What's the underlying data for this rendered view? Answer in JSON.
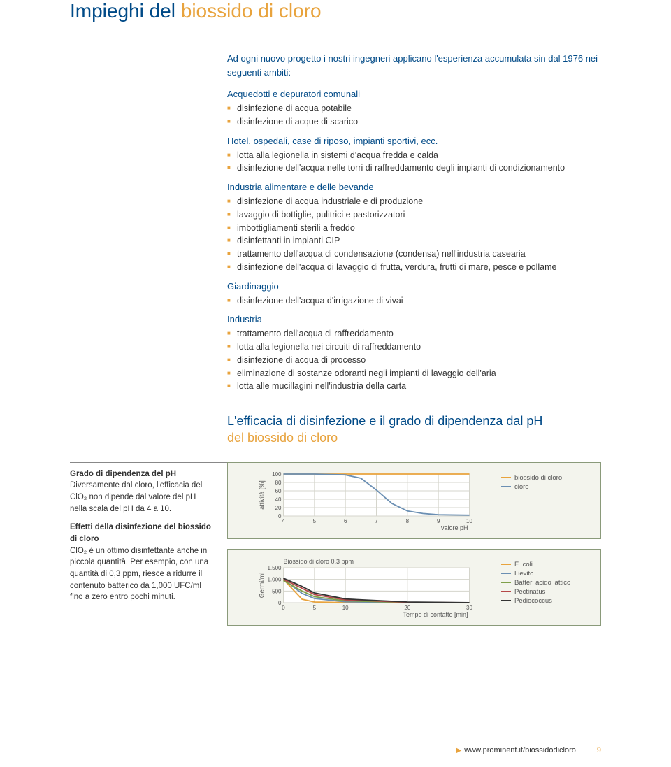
{
  "title_a": "Impieghi del ",
  "title_b": "biossido di cloro",
  "intro": "Ad ogni nuovo progetto i nostri ingegneri applicano l'esperienza accumulata sin dal 1976 nei seguenti ambiti:",
  "sections": [
    {
      "head": "Acquedotti e depuratori comunali",
      "items": [
        "disinfezione di acqua potabile",
        "disinfezione di acque di scarico"
      ]
    },
    {
      "head": "Hotel, ospedali, case di riposo, impianti sportivi, ecc.",
      "items": [
        "lotta alla legionella in sistemi d'acqua fredda e calda",
        "disinfezione dell'acqua nelle torri di raffreddamento degli impianti di condizionamento"
      ]
    },
    {
      "head": "Industria alimentare e delle bevande",
      "items": [
        "disinfezione di acqua industriale e di produzione",
        "lavaggio di bottiglie, pulitrici e pastorizzatori",
        "imbottigliamenti sterili a freddo",
        "disinfettanti in impianti CIP",
        "trattamento dell'acqua di condensazione (condensa) nell'industria casearia",
        "disinfezione dell'acqua di lavaggio di frutta, verdura, frutti di mare, pesce e pollame"
      ]
    },
    {
      "head": "Giardinaggio",
      "items": [
        "disinfezione dell'acqua d'irrigazione di vivai"
      ]
    },
    {
      "head": "Industria",
      "items": [
        "trattamento dell'acqua di raffreddamento",
        "lotta alla legionella nei circuiti di raffreddamento",
        "disinfezione di acqua di processo",
        "eliminazione di sostanze odoranti negli impianti di lavaggio dell'aria",
        "lotta alle mucillagini nell'industria della carta"
      ]
    }
  ],
  "subhead2_a": "L'efficacia di disinfezione e il grado di dipendenza dal pH",
  "subhead2_b": "del biossido di cloro",
  "sidebar": {
    "p1_head": "Grado di dipendenza del pH",
    "p1": "Diversamente dal cloro, l'efficacia del ClO₂ non dipende dal valore del pH nella scala del pH da 4 a 10.",
    "p2_head": "Effetti della disinfezione del biossido di cloro",
    "p2": "ClO₂ è un ottimo disinfettante anche in piccola quantità. Per esempio, con una quantità di 0,3 ppm, riesce a ridurre il contenuto batterico da 1,000 UFC/ml fino a zero entro pochi minuti."
  },
  "chart1": {
    "type": "line",
    "background": "#f3f4ed",
    "plot_bg": "#ffffff",
    "grid_color": "#d5d5cc",
    "ylabel": "attività [%]",
    "xlabel": "valore pH",
    "xlim": [
      4,
      10
    ],
    "ylim": [
      0,
      100
    ],
    "xticks": [
      4,
      5,
      6,
      7,
      8,
      9,
      10
    ],
    "yticks": [
      0,
      20,
      40,
      60,
      80,
      100
    ],
    "label_fontsize": 9,
    "tick_fontsize": 8,
    "series": [
      {
        "name": "biossido di cloro",
        "color": "#e8a33d",
        "x": [
          4,
          5,
          6,
          7,
          8,
          9,
          10
        ],
        "y": [
          100,
          100,
          100,
          100,
          100,
          100,
          100
        ]
      },
      {
        "name": "cloro",
        "color": "#6b8fb3",
        "x": [
          4,
          5,
          6,
          6.5,
          7,
          7.5,
          8,
          8.5,
          9,
          10
        ],
        "y": [
          100,
          100,
          98,
          90,
          62,
          30,
          12,
          6,
          3,
          2
        ]
      }
    ]
  },
  "chart2": {
    "type": "line",
    "title": "Biossido di cloro 0,3 ppm",
    "background": "#f3f4ed",
    "plot_bg": "#ffffff",
    "grid_color": "#d5d5cc",
    "ylabel": "Germi/ml",
    "xlabel": "Tempo di contatto [min]",
    "xlim": [
      0,
      30
    ],
    "ylim": [
      0,
      1500
    ],
    "xticks": [
      0,
      5,
      10,
      20,
      30
    ],
    "yticks": [
      0,
      500,
      1000,
      1500
    ],
    "ytick_labels": [
      "0",
      "500",
      "1.000",
      "1.500"
    ],
    "label_fontsize": 9,
    "tick_fontsize": 8,
    "series": [
      {
        "name": "E. coli",
        "color": "#e8a33d",
        "x": [
          0,
          3,
          5,
          10,
          20,
          30
        ],
        "y": [
          1000,
          150,
          30,
          5,
          0,
          0
        ]
      },
      {
        "name": "Lievito",
        "color": "#6b8fb3",
        "x": [
          0,
          3,
          5,
          10,
          20,
          30
        ],
        "y": [
          1000,
          400,
          180,
          40,
          5,
          0
        ]
      },
      {
        "name": "Batteri acido lattico",
        "color": "#7fa04a",
        "x": [
          0,
          3,
          5,
          10,
          20,
          30
        ],
        "y": [
          950,
          500,
          260,
          80,
          10,
          0
        ]
      },
      {
        "name": "Pectinatus",
        "color": "#b54848",
        "x": [
          0,
          3,
          5,
          10,
          20,
          30
        ],
        "y": [
          1000,
          620,
          350,
          120,
          20,
          0
        ]
      },
      {
        "name": "Pediococcus",
        "color": "#333333",
        "x": [
          0,
          3,
          5,
          10,
          20,
          30
        ],
        "y": [
          1050,
          700,
          420,
          160,
          30,
          2
        ]
      }
    ]
  },
  "footer_link": "www.prominent.it/biossidodicloro",
  "page_number": "9"
}
